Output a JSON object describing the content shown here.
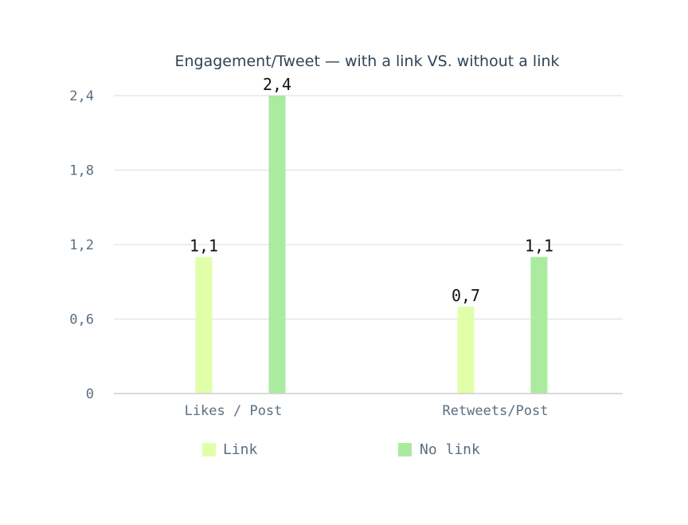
{
  "chart_data": {
    "type": "bar",
    "title": "Engagement/Tweet — with a link VS. without a link",
    "xlabel": "",
    "ylabel": "",
    "categories": [
      "Likes / Post",
      "Retweets/Post"
    ],
    "series": [
      {
        "name": "Link",
        "color": "#e1ffa9",
        "values": [
          1.1,
          0.7
        ],
        "labels": [
          "1,1",
          "0,7"
        ]
      },
      {
        "name": "No link",
        "color": "#aaeba0",
        "values": [
          2.4,
          1.1
        ],
        "labels": [
          "2,4",
          "1,1"
        ]
      }
    ],
    "ylim": [
      0,
      2.4
    ],
    "yticks": [
      0,
      0.6,
      1.2,
      1.8,
      2.4
    ],
    "ytick_labels": [
      "0",
      "0,6",
      "1,2",
      "1,8",
      "2,4"
    ],
    "grid": true,
    "legend": "bottom"
  }
}
